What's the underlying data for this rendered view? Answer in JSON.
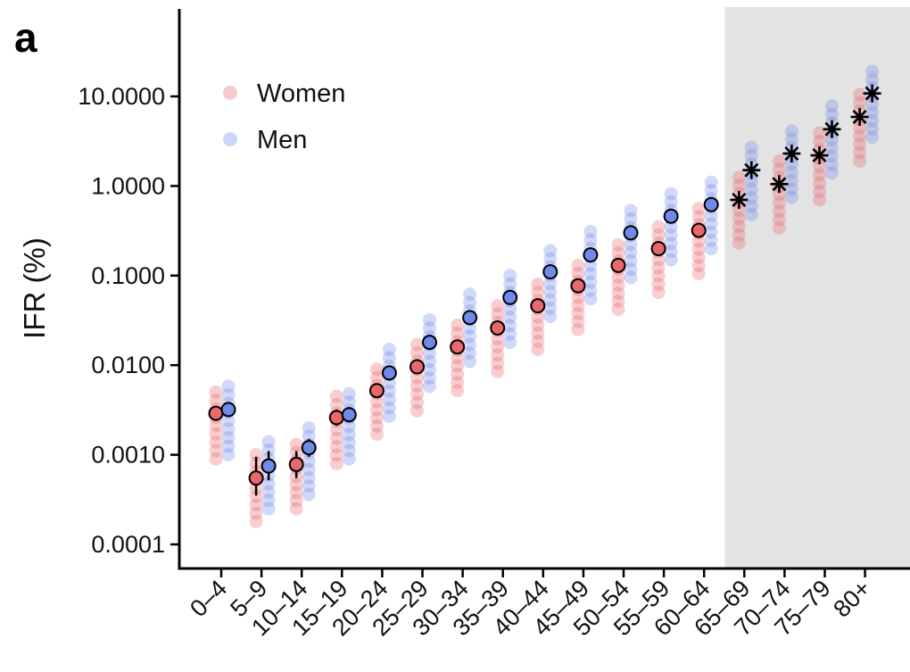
{
  "chart_data": {
    "type": "scatter",
    "panel_label": "a",
    "ylabel": "IFR (%)",
    "yscale": "log",
    "ylim": [
      0.0001,
      30
    ],
    "yticks": [
      0.0001,
      0.001,
      0.01,
      0.1,
      1,
      10
    ],
    "ytick_labels": [
      "0.0001",
      "0.0010",
      "0.0100",
      "0.1000",
      "1.0000",
      "10.0000"
    ],
    "categories": [
      "0–4",
      "5–9",
      "10–14",
      "15–19",
      "20–24",
      "25–29",
      "30–34",
      "35–39",
      "40–44",
      "45–49",
      "50–54",
      "55–59",
      "60–64",
      "65–69",
      "70–74",
      "75–79",
      "80+"
    ],
    "shaded_categories": [
      "65–69",
      "70–74",
      "75–79",
      "80+"
    ],
    "legend_placement": "top-left",
    "series": [
      {
        "name": "Women",
        "color": "#e8686c",
        "point_estimate": [
          0.0029,
          0.00055,
          0.00078,
          0.0026,
          0.0052,
          0.0096,
          0.016,
          0.026,
          0.046,
          0.077,
          0.13,
          0.2,
          0.32,
          0.7,
          1.05,
          2.2,
          5.9
        ],
        "range_low": [
          0.0009,
          0.00018,
          0.00025,
          0.0008,
          0.0017,
          0.0031,
          0.0052,
          0.0085,
          0.015,
          0.025,
          0.042,
          0.065,
          0.105,
          0.23,
          0.34,
          0.7,
          1.9
        ],
        "range_high": [
          0.005,
          0.001,
          0.0013,
          0.0045,
          0.009,
          0.017,
          0.028,
          0.046,
          0.08,
          0.13,
          0.22,
          0.35,
          0.56,
          1.25,
          1.9,
          3.9,
          10.5
        ],
        "markers": [
          "circle",
          "circle",
          "circle",
          "circle",
          "circle",
          "circle",
          "circle",
          "circle",
          "circle",
          "circle",
          "circle",
          "circle",
          "circle",
          "star",
          "star",
          "star",
          "star"
        ]
      },
      {
        "name": "Men",
        "color": "#6f8ae8",
        "point_estimate": [
          0.0032,
          0.00075,
          0.0012,
          0.0028,
          0.0082,
          0.018,
          0.034,
          0.057,
          0.11,
          0.17,
          0.3,
          0.46,
          0.62,
          1.5,
          2.3,
          4.3,
          10.8
        ],
        "range_low": [
          0.001,
          0.00025,
          0.00036,
          0.0009,
          0.0027,
          0.0058,
          0.011,
          0.018,
          0.035,
          0.055,
          0.095,
          0.15,
          0.2,
          0.48,
          0.75,
          1.4,
          3.5
        ],
        "range_high": [
          0.0058,
          0.0014,
          0.002,
          0.0048,
          0.015,
          0.032,
          0.062,
          0.1,
          0.19,
          0.31,
          0.53,
          0.82,
          1.1,
          2.7,
          4.1,
          7.8,
          19
        ],
        "markers": [
          "circle",
          "circle",
          "circle",
          "circle",
          "circle",
          "circle",
          "circle",
          "circle",
          "circle",
          "circle",
          "circle",
          "circle",
          "circle",
          "star",
          "star",
          "star",
          "star"
        ]
      }
    ],
    "error_bars": {
      "Women": {
        "1": [
          0.00035,
          0.00095
        ],
        "2": [
          0.00055,
          0.0011
        ],
        "3": [
          0.0021,
          0.0032
        ]
      },
      "Men": {
        "1": [
          0.00052,
          0.0011
        ],
        "2": [
          0.00095,
          0.0015
        ],
        "3": [
          0.0023,
          0.0034
        ]
      }
    }
  }
}
